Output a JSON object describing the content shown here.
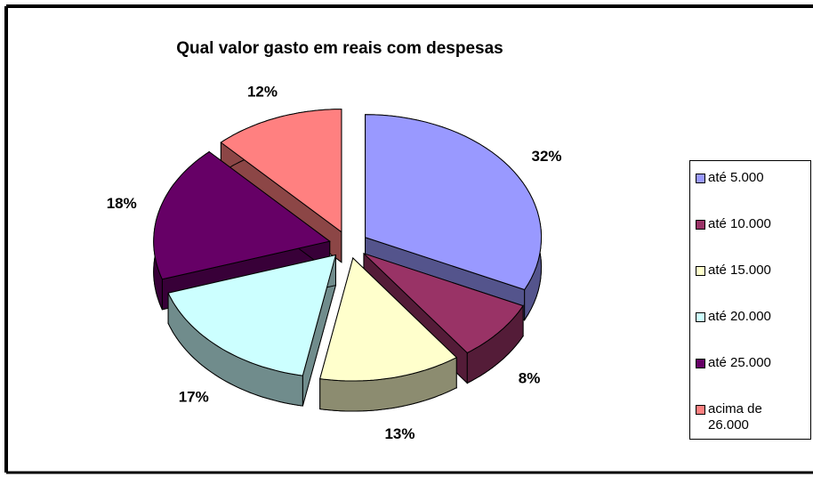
{
  "chart_data": {
    "type": "pie",
    "title": "Qual valor gasto em reais com despesas",
    "categories": [
      "até 5.000",
      "até 10.000",
      "até 15.000",
      "até 20.000",
      "até 25.000",
      "acima de 26.000"
    ],
    "values": [
      32,
      8,
      13,
      17,
      18,
      12
    ],
    "value_labels": [
      "32%",
      "8%",
      "13%",
      "17%",
      "18%",
      "12%"
    ],
    "colors": [
      "#9999ff",
      "#993366",
      "#ffffcc",
      "#ccffff",
      "#660066",
      "#ff8080"
    ],
    "legend": "right"
  }
}
